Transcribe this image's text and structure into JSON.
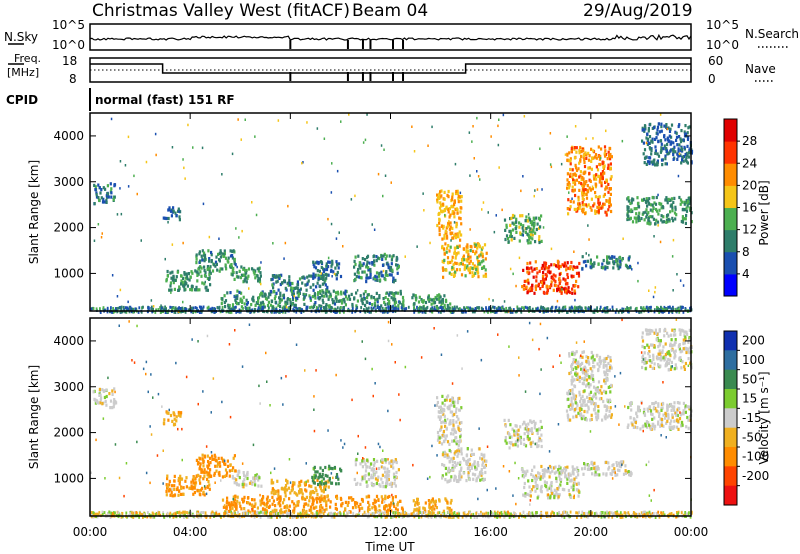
{
  "header": {
    "station": "Christmas Valley West (fitACF)",
    "beam": "Beam 04",
    "date": "29/Aug/2019"
  },
  "noise_panel": {
    "left_label": "N.Sky",
    "right_label": "N.Search",
    "left_ticks": [
      "10^5",
      "10^0"
    ],
    "right_ticks": [
      "10^5",
      "10^0"
    ]
  },
  "freq_panel": {
    "left_label_1": "Freq.",
    "left_label_2": "[MHz]",
    "right_label": "Nave",
    "left_ticks": [
      "18",
      "8"
    ],
    "right_ticks": [
      "60",
      "0"
    ]
  },
  "cpid": {
    "label": "CPID",
    "mode": "normal (fast) 151 RF"
  },
  "axes": {
    "ylabel": "Slant Range [km]",
    "xlabel": "Time UT",
    "y_ticks": [
      "1000",
      "2000",
      "3000",
      "4000"
    ],
    "x_ticks": [
      "00:00",
      "04:00",
      "08:00",
      "12:00",
      "16:00",
      "20:00",
      "00:00"
    ]
  },
  "colorbars": {
    "power": {
      "label": "Power [dB]",
      "ticks": [
        "4",
        "8",
        "12",
        "16",
        "20",
        "24",
        "28"
      ],
      "colors": [
        "#0000ff",
        "#1a4fb0",
        "#2e7d6a",
        "#4caf50",
        "#f5c518",
        "#ff8c00",
        "#ff3300",
        "#e00000"
      ]
    },
    "velocity": {
      "label": "Velocity [m s⁻¹]",
      "ticks": [
        "200",
        "100",
        "50",
        "15",
        "-15",
        "-50",
        "-100",
        "-200"
      ],
      "colors": [
        "#1030b0",
        "#2e6ea0",
        "#3a8a50",
        "#7ccc30",
        "#cccccc",
        "#f0b020",
        "#ff8c00",
        "#ff4400",
        "#ee1111"
      ]
    }
  },
  "chart_data": [
    {
      "type": "heatmap",
      "title": "Power",
      "x_range_hours": [
        0,
        24
      ],
      "y_range_km": [
        180,
        4500
      ],
      "unit": "dB",
      "blobs": [
        {
          "t0": 0.1,
          "t1": 1.0,
          "r0": 2550,
          "r1": 3000,
          "value": 9
        },
        {
          "t0": 2.9,
          "t1": 3.6,
          "r0": 2200,
          "r1": 2500,
          "value": 8
        },
        {
          "t0": 3.0,
          "t1": 4.8,
          "r0": 650,
          "r1": 1100,
          "value": 12
        },
        {
          "t0": 4.2,
          "t1": 5.8,
          "r0": 1050,
          "r1": 1550,
          "value": 11
        },
        {
          "t0": 5.6,
          "t1": 6.8,
          "r0": 850,
          "r1": 1200,
          "value": 12
        },
        {
          "t0": 7.2,
          "t1": 9.5,
          "r0": 650,
          "r1": 1000,
          "value": 9
        },
        {
          "t0": 8.8,
          "t1": 10.0,
          "r0": 900,
          "r1": 1300,
          "value": 8
        },
        {
          "t0": 10.5,
          "t1": 12.3,
          "r0": 850,
          "r1": 1450,
          "value": 10
        },
        {
          "t0": 5.2,
          "t1": 12.5,
          "r0": 300,
          "r1": 650,
          "value": 11
        },
        {
          "t0": 12.8,
          "t1": 14.4,
          "r0": 300,
          "r1": 600,
          "value": 12
        },
        {
          "t0": 13.8,
          "t1": 14.8,
          "r0": 1750,
          "r1": 2850,
          "value": 20
        },
        {
          "t0": 14.0,
          "t1": 15.8,
          "r0": 950,
          "r1": 1700,
          "value": 18
        },
        {
          "t0": 16.5,
          "t1": 18.0,
          "r0": 1700,
          "r1": 2300,
          "value": 13
        },
        {
          "t0": 17.2,
          "t1": 19.5,
          "r0": 600,
          "r1": 1300,
          "value": 26
        },
        {
          "t0": 19.0,
          "t1": 20.8,
          "r0": 2300,
          "r1": 3800,
          "value": 22
        },
        {
          "t0": 19.6,
          "t1": 21.6,
          "r0": 1100,
          "r1": 1400,
          "value": 10
        },
        {
          "t0": 21.4,
          "t1": 24.0,
          "r0": 2100,
          "r1": 2700,
          "value": 12
        },
        {
          "t0": 22.0,
          "t1": 24.0,
          "r0": 3400,
          "r1": 4300,
          "value": 8
        }
      ]
    },
    {
      "type": "heatmap",
      "title": "Velocity",
      "x_range_hours": [
        0,
        24
      ],
      "y_range_km": [
        180,
        4500
      ],
      "unit": "m s⁻¹",
      "blobs": [
        {
          "t0": 0.1,
          "t1": 1.0,
          "r0": 2550,
          "r1": 3000,
          "value": 0
        },
        {
          "t0": 2.9,
          "t1": 3.6,
          "r0": 2200,
          "r1": 2500,
          "value": -40
        },
        {
          "t0": 3.0,
          "t1": 4.8,
          "r0": 650,
          "r1": 1100,
          "value": -60
        },
        {
          "t0": 4.2,
          "t1": 5.8,
          "r0": 1050,
          "r1": 1550,
          "value": -60
        },
        {
          "t0": 5.6,
          "t1": 6.8,
          "r0": 850,
          "r1": 1200,
          "value": 0
        },
        {
          "t0": 7.2,
          "t1": 9.5,
          "r0": 650,
          "r1": 1000,
          "value": -40
        },
        {
          "t0": 8.8,
          "t1": 10.0,
          "r0": 900,
          "r1": 1300,
          "value": 60
        },
        {
          "t0": 10.5,
          "t1": 12.3,
          "r0": 850,
          "r1": 1450,
          "value": 0
        },
        {
          "t0": 5.2,
          "t1": 12.5,
          "r0": 300,
          "r1": 650,
          "value": -60
        },
        {
          "t0": 12.8,
          "t1": 14.4,
          "r0": 300,
          "r1": 600,
          "value": -40
        },
        {
          "t0": 13.8,
          "t1": 14.8,
          "r0": 1750,
          "r1": 2850,
          "value": 0
        },
        {
          "t0": 14.0,
          "t1": 15.8,
          "r0": 950,
          "r1": 1700,
          "value": 0
        },
        {
          "t0": 16.5,
          "t1": 18.0,
          "r0": 1700,
          "r1": 2300,
          "value": 0
        },
        {
          "t0": 17.2,
          "t1": 19.5,
          "r0": 600,
          "r1": 1300,
          "value": 0
        },
        {
          "t0": 19.0,
          "t1": 20.8,
          "r0": 2300,
          "r1": 3800,
          "value": 0
        },
        {
          "t0": 19.6,
          "t1": 21.6,
          "r0": 1100,
          "r1": 1400,
          "value": 0
        },
        {
          "t0": 21.4,
          "t1": 24.0,
          "r0": 2100,
          "r1": 2700,
          "value": 0
        },
        {
          "t0": 22.0,
          "t1": 24.0,
          "r0": 3400,
          "r1": 4300,
          "value": 0
        }
      ]
    }
  ]
}
